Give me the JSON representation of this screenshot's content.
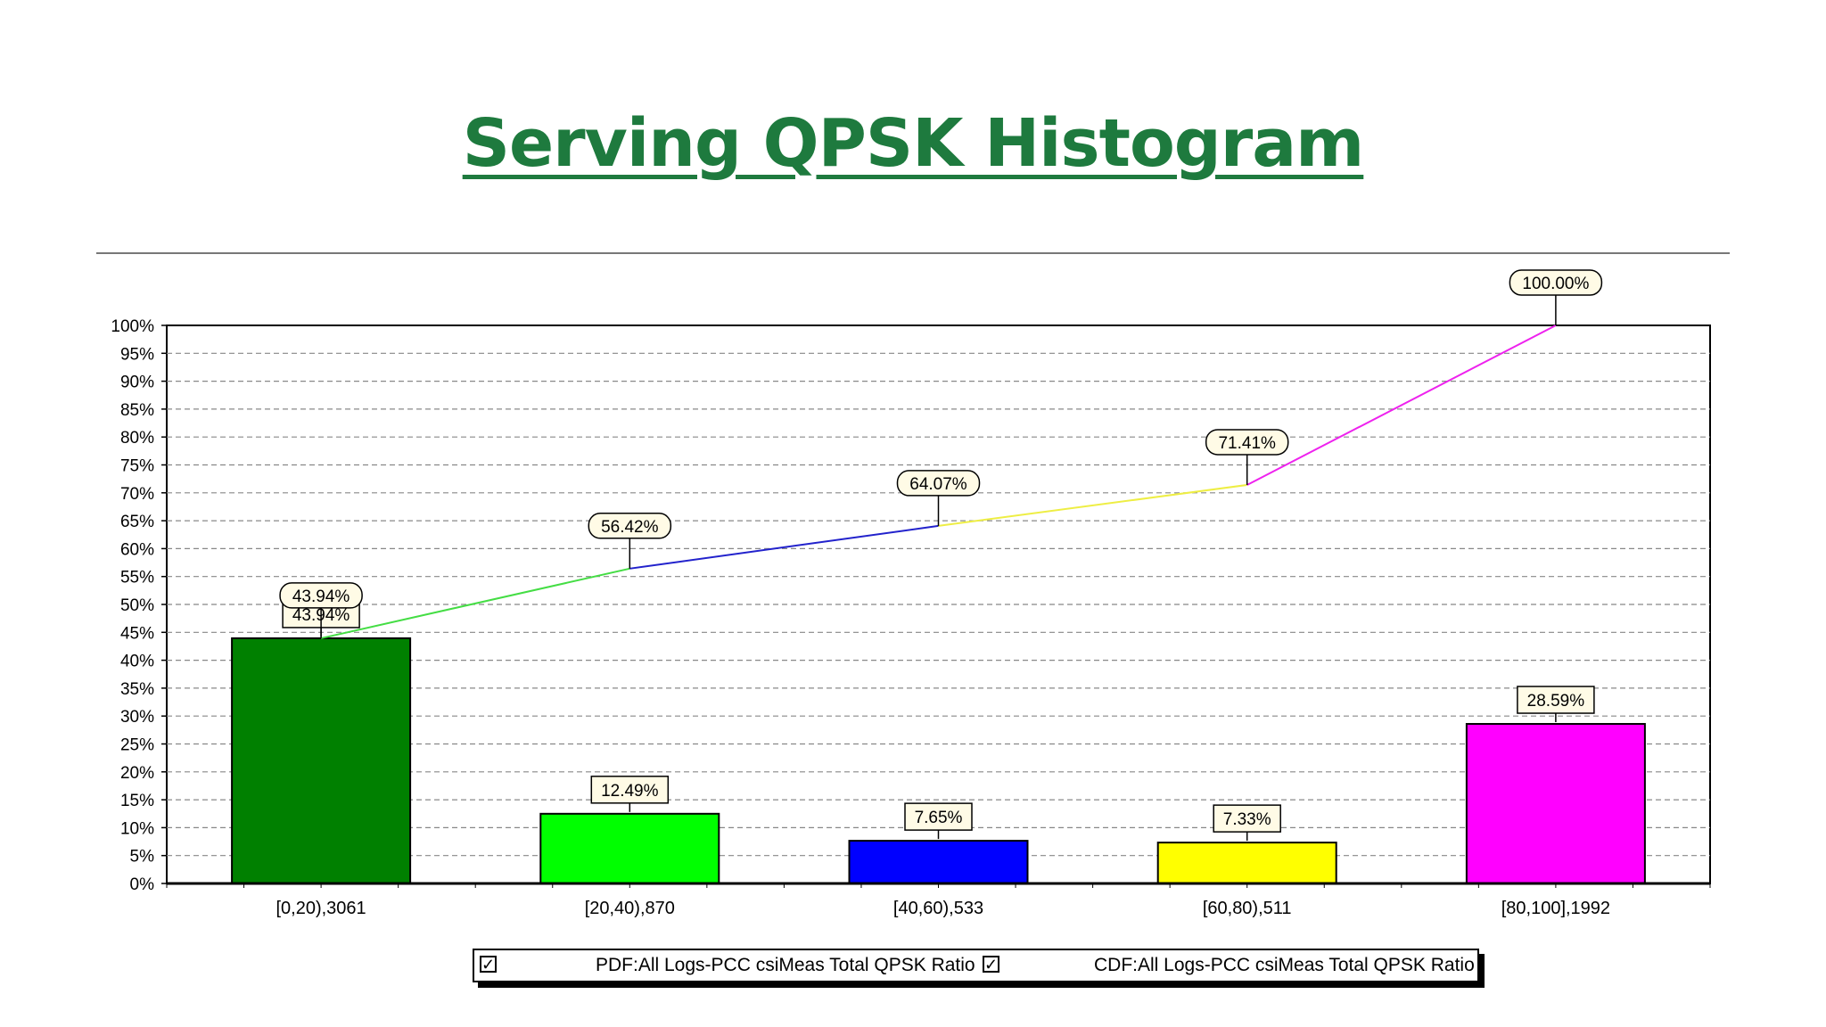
{
  "slide": {
    "title": "Serving QPSK Histogram"
  },
  "chart_data": {
    "type": "bar",
    "categories": [
      "[0,20),3061",
      "[20,40),870",
      "[40,60),533",
      "[60,80),511",
      "[80,100],1992"
    ],
    "series": [
      {
        "name": "PDF:All Logs-PCC csiMeas Total QPSK Ratio",
        "type": "bar",
        "values": [
          43.94,
          12.49,
          7.65,
          7.33,
          28.59
        ],
        "labels": [
          "43.94%",
          "12.49%",
          "7.65%",
          "7.33%",
          "28.59%"
        ],
        "colors": [
          "#008000",
          "#00ff00",
          "#0000ff",
          "#ffff00",
          "#ff00ff"
        ]
      },
      {
        "name": "CDF:All Logs-PCC csiMeas Total QPSK Ratio",
        "type": "line",
        "values": [
          43.94,
          56.42,
          64.07,
          71.41,
          100.0
        ],
        "labels": [
          "43.94%",
          "56.42%",
          "64.07%",
          "71.41%",
          "100.00%"
        ],
        "colors": [
          "#44dd44",
          "#2222cc",
          "#eeee44",
          "#ee22ee"
        ]
      }
    ],
    "yticks": [
      "0%",
      "5%",
      "10%",
      "15%",
      "20%",
      "25%",
      "30%",
      "35%",
      "40%",
      "45%",
      "50%",
      "55%",
      "60%",
      "65%",
      "70%",
      "75%",
      "80%",
      "85%",
      "90%",
      "95%",
      "100%"
    ],
    "ylim": [
      0,
      100
    ],
    "grid": true,
    "legend_position": "bottom",
    "legend_checked": [
      "✓",
      "✓"
    ]
  }
}
